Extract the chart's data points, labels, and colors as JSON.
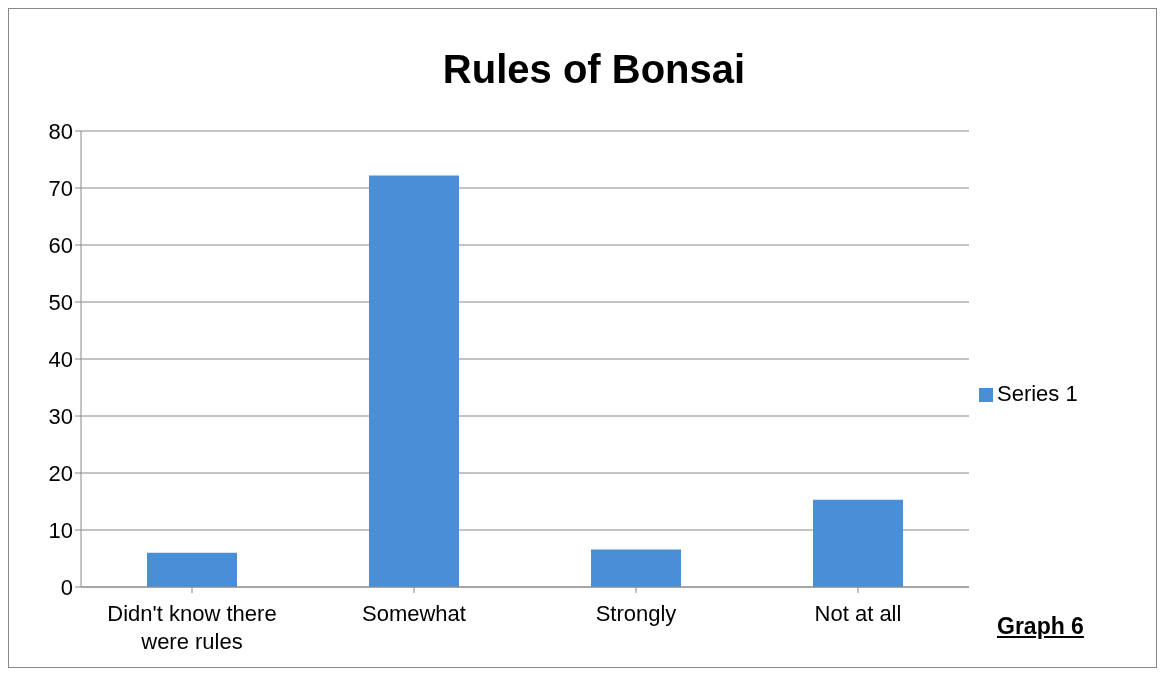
{
  "chart_data": {
    "type": "bar",
    "title": "Rules of Bonsai",
    "categories": [
      "Didn't know there were rules",
      "Somewhat",
      "Strongly",
      "Not at all"
    ],
    "series": [
      {
        "name": "Series 1",
        "color": "#4a8fd6",
        "values": [
          6,
          72.2,
          6.6,
          15.3
        ]
      }
    ],
    "ylim": [
      0,
      80
    ],
    "yticks": [
      0,
      10,
      20,
      30,
      40,
      50,
      60,
      70,
      80
    ],
    "grid": "y",
    "legend": "right",
    "annotations": [
      "Graph 6"
    ]
  }
}
